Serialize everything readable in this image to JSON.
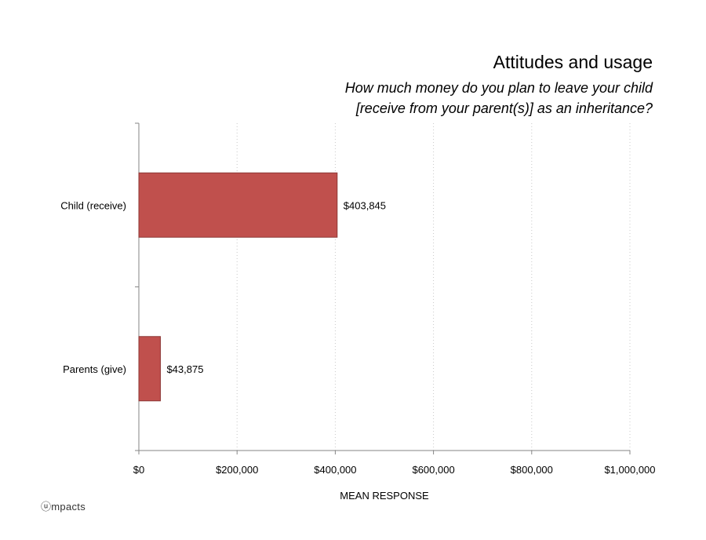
{
  "chart_data": {
    "type": "bar",
    "orientation": "horizontal",
    "title": "Attitudes and usage",
    "subtitle_lines": [
      "How much money do you plan to leave your child",
      "[receive from your parent(s)] as an inheritance?"
    ],
    "categories": [
      "Child (receive)",
      "Parents (give)"
    ],
    "values": [
      403845,
      43875
    ],
    "data_labels": [
      "$403,845",
      "$43,875"
    ],
    "xlabel": "MEAN RESPONSE",
    "ylabel": "",
    "xlim": [
      0,
      1000000
    ],
    "x_ticks": [
      0,
      200000,
      400000,
      600000,
      800000,
      1000000
    ],
    "x_tick_labels": [
      "$0",
      "$200,000",
      "$400,000",
      "$600,000",
      "$800,000",
      "$1,000,000"
    ],
    "grid": "vertical dotted",
    "bar_color": "#c0504d",
    "bar_border_color": "#8c3836",
    "grid_color": "#c8c8c8",
    "axis_color": "#868686"
  },
  "footer": {
    "brand": "ⓤmpacts"
  }
}
